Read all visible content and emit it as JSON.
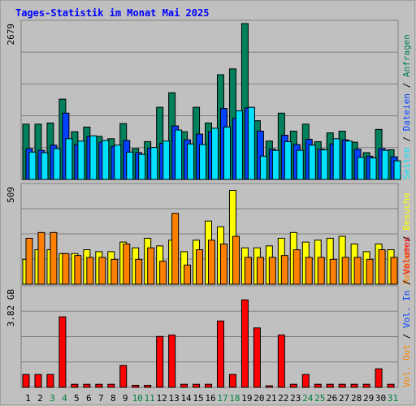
{
  "title": "Tages-Statistik im Monat Mai 2025",
  "colors": {
    "background": "#c0c0c0",
    "border": "#808080",
    "title": "#0000ff",
    "grid": "#808080",
    "hits": "#00805c",
    "files": "#0040ff",
    "pages": "#00e0ff",
    "visits": "#ffff00",
    "sites": "#ff8000",
    "volume": "#ff0000",
    "weekend_label": "#008040",
    "weekday_label": "#000000"
  },
  "chart_data": [
    {
      "type": "bar",
      "panel": "top",
      "max_label": "2679",
      "ylim": [
        0,
        2679
      ],
      "side_legend": [
        {
          "text": "Anfragen",
          "color": "#00805c"
        },
        {
          "text": "Dateien",
          "color": "#0040ff"
        },
        {
          "text": "Seiten",
          "color": "#00e0ff"
        }
      ],
      "categories": [
        "1",
        "2",
        "3",
        "4",
        "5",
        "6",
        "7",
        "8",
        "9",
        "10",
        "11",
        "12",
        "13",
        "14",
        "15",
        "16",
        "17",
        "18",
        "19",
        "20",
        "21",
        "22",
        "23",
        "24",
        "25",
        "26",
        "27",
        "28",
        "29",
        "30",
        "31"
      ],
      "series": [
        {
          "name": "Anfragen",
          "values": [
            950,
            950,
            970,
            1380,
            820,
            900,
            740,
            700,
            960,
            530,
            650,
            1240,
            1490,
            820,
            1240,
            970,
            1800,
            1900,
            2679,
            1010,
            660,
            1140,
            830,
            950,
            650,
            800,
            830,
            640,
            460,
            860,
            510
          ]
        },
        {
          "name": "Dateien",
          "values": [
            530,
            500,
            590,
            1140,
            600,
            740,
            640,
            570,
            670,
            460,
            540,
            620,
            920,
            680,
            780,
            820,
            1220,
            1050,
            1230,
            830,
            520,
            760,
            600,
            690,
            520,
            610,
            680,
            520,
            400,
            530,
            390
          ]
        },
        {
          "name": "Seiten",
          "values": [
            470,
            460,
            530,
            700,
            660,
            750,
            670,
            590,
            470,
            430,
            550,
            660,
            850,
            610,
            600,
            880,
            900,
            1180,
            1240,
            400,
            500,
            650,
            500,
            590,
            510,
            700,
            660,
            380,
            370,
            500,
            320
          ]
        }
      ]
    },
    {
      "type": "bar",
      "panel": "middle",
      "max_label": "509",
      "ylim": [
        0,
        509
      ],
      "side_legend": [
        {
          "text": "Besuche",
          "color": "#ffff00"
        },
        {
          "text": "Rechner",
          "color": "#ff8000"
        }
      ],
      "categories": [
        "1",
        "2",
        "3",
        "4",
        "5",
        "6",
        "7",
        "8",
        "9",
        "10",
        "11",
        "12",
        "13",
        "14",
        "15",
        "16",
        "17",
        "18",
        "19",
        "20",
        "21",
        "22",
        "23",
        "24",
        "25",
        "26",
        "27",
        "28",
        "29",
        "30",
        "31"
      ],
      "series": [
        {
          "name": "Besuche",
          "values": [
            130,
            180,
            180,
            160,
            160,
            180,
            170,
            170,
            220,
            190,
            240,
            200,
            230,
            170,
            230,
            330,
            300,
            490,
            190,
            190,
            200,
            240,
            270,
            220,
            230,
            240,
            250,
            210,
            170,
            210,
            180
          ]
        },
        {
          "name": "Rechner",
          "values": [
            240,
            270,
            270,
            160,
            150,
            140,
            140,
            130,
            210,
            130,
            190,
            120,
            370,
            100,
            180,
            230,
            210,
            250,
            140,
            140,
            140,
            150,
            180,
            140,
            140,
            130,
            140,
            140,
            130,
            180,
            140
          ]
        }
      ]
    },
    {
      "type": "bar",
      "panel": "bottom",
      "max_label": "3.82 GB",
      "ylim": [
        0,
        3.82
      ],
      "side_legend": [
        {
          "text": "Volumen",
          "color": "#ff0000"
        },
        {
          "text": "Vol. In",
          "color": "#0040ff"
        },
        {
          "text": "Vol. Out",
          "color": "#ff8000"
        }
      ],
      "categories": [
        "1",
        "2",
        "3",
        "4",
        "5",
        "6",
        "7",
        "8",
        "9",
        "10",
        "11",
        "12",
        "13",
        "14",
        "15",
        "16",
        "17",
        "18",
        "19",
        "20",
        "21",
        "22",
        "23",
        "24",
        "25",
        "26",
        "27",
        "28",
        "29",
        "30",
        "31"
      ],
      "series": [
        {
          "name": "Volumen",
          "values": [
            0.5,
            0.5,
            0.5,
            2.74,
            0.12,
            0.12,
            0.12,
            0.12,
            0.85,
            0.08,
            0.08,
            1.98,
            2.03,
            0.12,
            0.12,
            0.12,
            2.58,
            0.5,
            3.4,
            2.31,
            0.06,
            2.03,
            0.12,
            0.5,
            0.12,
            0.12,
            0.12,
            0.12,
            0.12,
            0.72,
            0.12
          ]
        }
      ]
    }
  ],
  "x_labels": [
    {
      "text": "1",
      "weekend": false
    },
    {
      "text": "2",
      "weekend": false
    },
    {
      "text": "3",
      "weekend": true
    },
    {
      "text": "4",
      "weekend": true
    },
    {
      "text": "5",
      "weekend": false
    },
    {
      "text": "6",
      "weekend": false
    },
    {
      "text": "7",
      "weekend": false
    },
    {
      "text": "8",
      "weekend": false
    },
    {
      "text": "9",
      "weekend": false
    },
    {
      "text": "10",
      "weekend": true
    },
    {
      "text": "11",
      "weekend": true
    },
    {
      "text": "12",
      "weekend": false
    },
    {
      "text": "13",
      "weekend": false
    },
    {
      "text": "14",
      "weekend": false
    },
    {
      "text": "15",
      "weekend": false
    },
    {
      "text": "16",
      "weekend": false
    },
    {
      "text": "17",
      "weekend": true
    },
    {
      "text": "18",
      "weekend": true
    },
    {
      "text": "19",
      "weekend": false
    },
    {
      "text": "20",
      "weekend": false
    },
    {
      "text": "21",
      "weekend": false
    },
    {
      "text": "22",
      "weekend": false
    },
    {
      "text": "23",
      "weekend": false
    },
    {
      "text": "24",
      "weekend": true
    },
    {
      "text": "25",
      "weekend": true
    },
    {
      "text": "26",
      "weekend": false
    },
    {
      "text": "27",
      "weekend": false
    },
    {
      "text": "28",
      "weekend": false
    },
    {
      "text": "29",
      "weekend": false
    },
    {
      "text": "30",
      "weekend": false
    },
    {
      "text": "31",
      "weekend": true
    }
  ]
}
